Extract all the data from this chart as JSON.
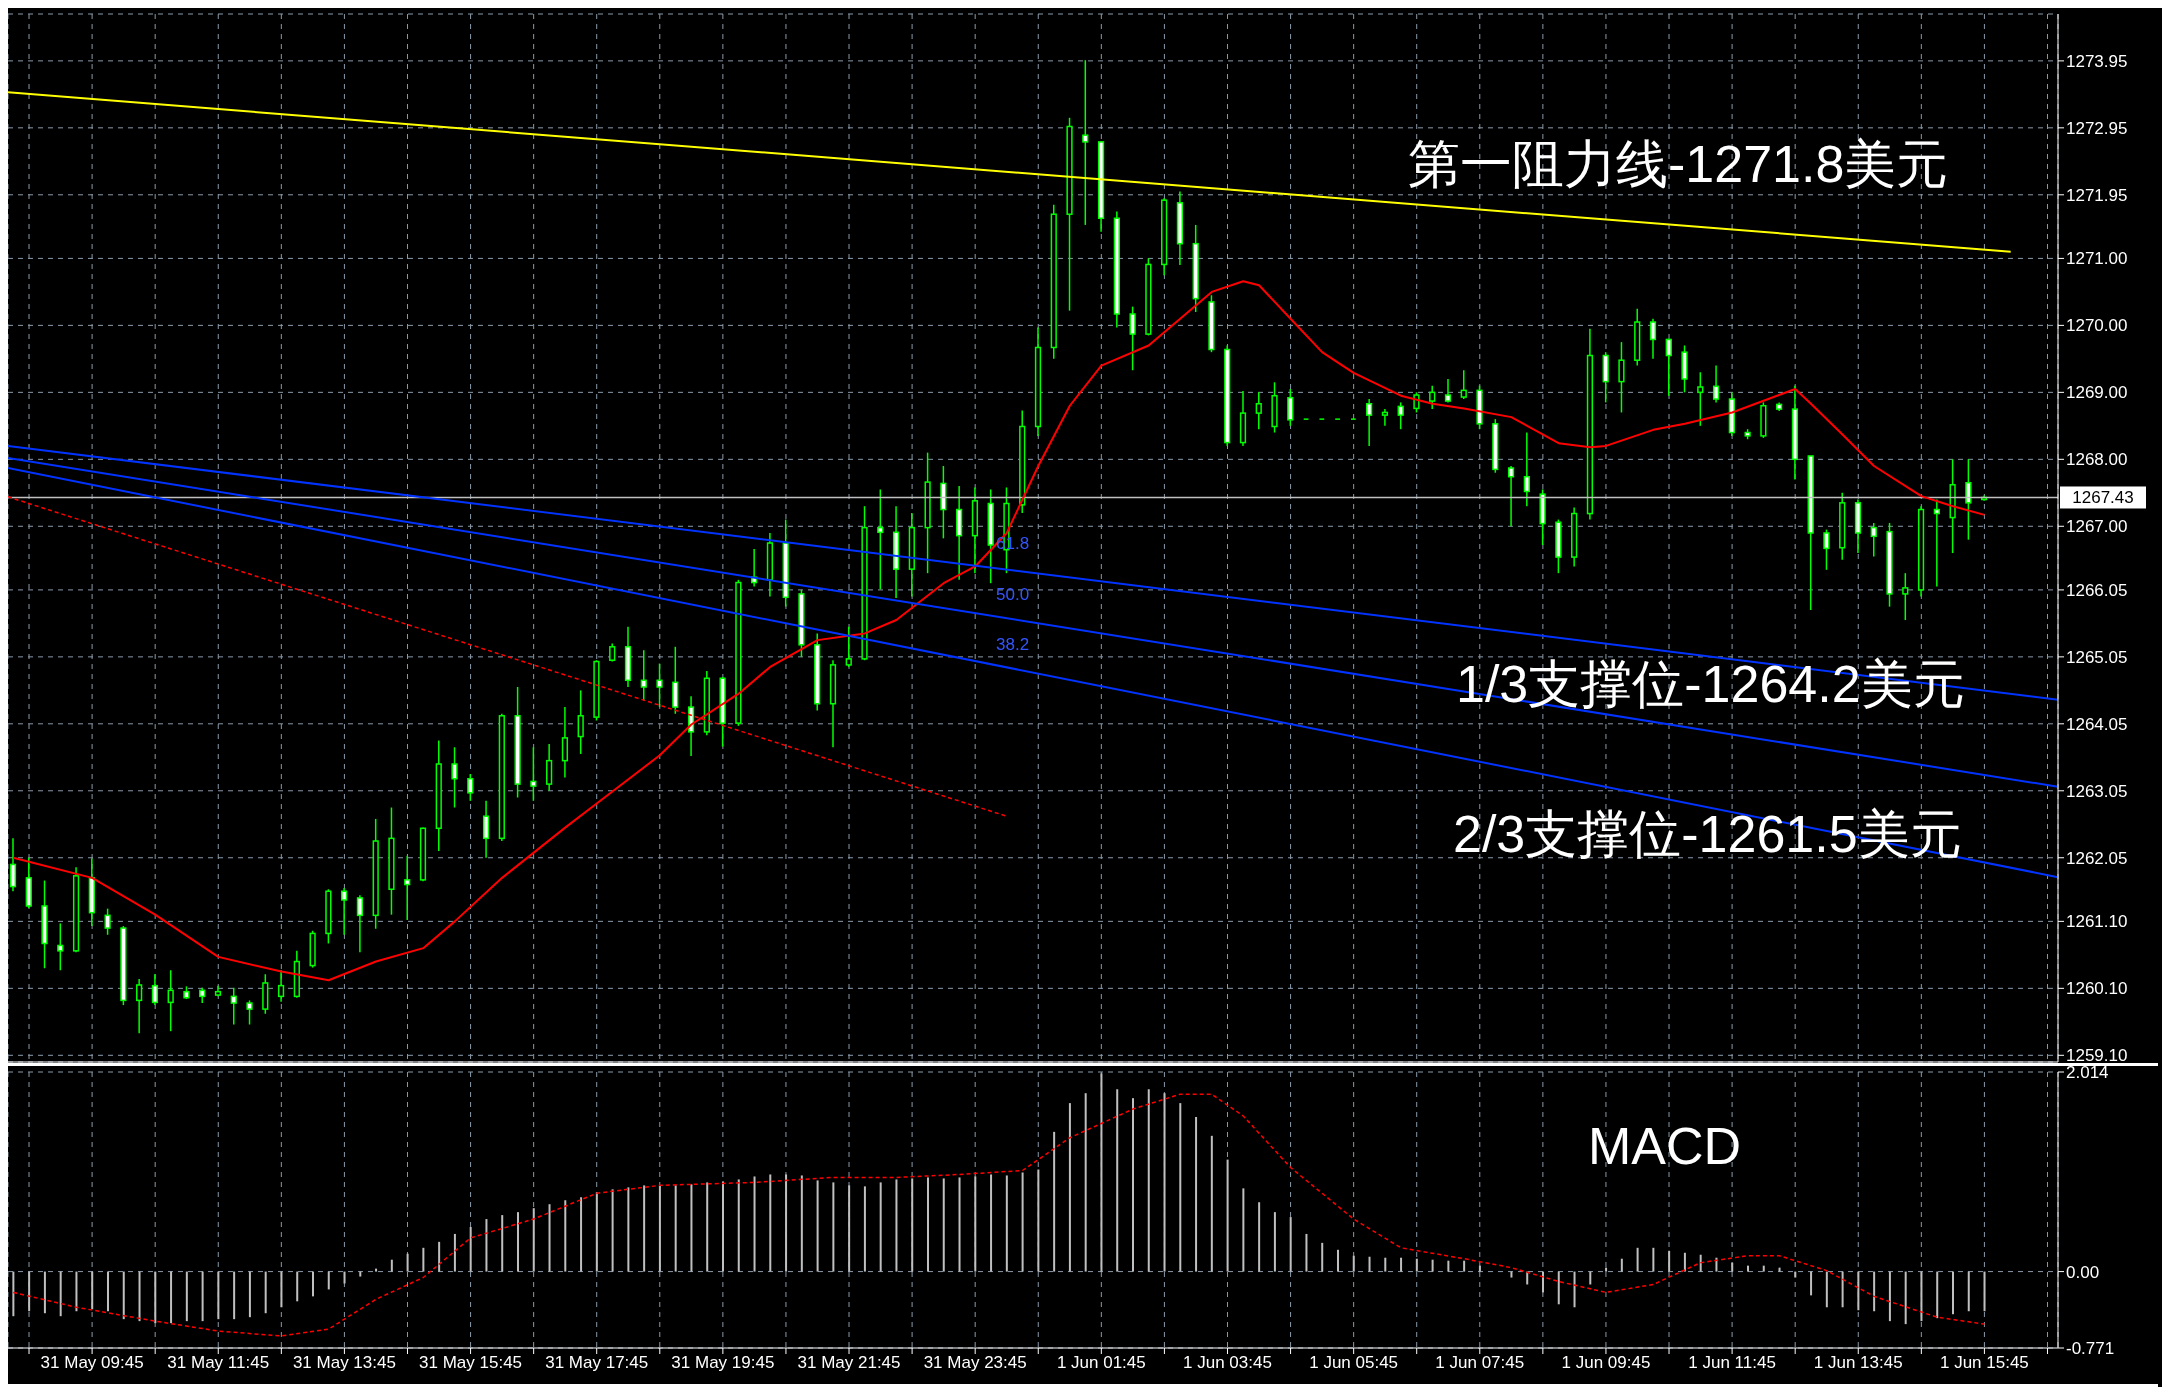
{
  "chart_data": [
    {
      "type": "candlestick",
      "tick_labels": "y",
      "grid": true,
      "marker": "none",
      "xlim": [
        "--05-31T08:25",
        "--06-01T16:55"
      ],
      "xticks": [
        {
          "value": "--05-31T08:45",
          "label": null
        },
        {
          "value": "--05-31T09:45",
          "label": null
        },
        {
          "value": "--05-31T10:45",
          "label": null
        },
        {
          "value": "--05-31T11:45",
          "label": null
        },
        {
          "value": "--05-31T12:45",
          "label": null
        },
        {
          "value": "--05-31T13:45",
          "label": null
        },
        {
          "value": "--05-31T14:45",
          "label": null
        },
        {
          "value": "--05-31T15:45",
          "label": null
        },
        {
          "value": "--05-31T16:45",
          "label": null
        },
        {
          "value": "--05-31T17:45",
          "label": null
        },
        {
          "value": "--05-31T18:45",
          "label": null
        },
        {
          "value": "--05-31T19:45",
          "label": null
        },
        {
          "value": "--05-31T20:45",
          "label": null
        },
        {
          "value": "--05-31T21:45",
          "label": null
        },
        {
          "value": "--05-31T22:45",
          "label": null
        },
        {
          "value": "--05-31T23:45",
          "label": null
        },
        {
          "value": "--06-01T00:45",
          "label": null
        },
        {
          "value": "--06-01T01:45",
          "label": null
        },
        {
          "value": "--06-01T02:45",
          "label": null
        },
        {
          "value": "--06-01T03:45",
          "label": null
        },
        {
          "value": "--06-01T04:45",
          "label": null
        },
        {
          "value": "--06-01T05:45",
          "label": null
        },
        {
          "value": "--06-01T06:45",
          "label": null
        },
        {
          "value": "--06-01T07:45",
          "label": null
        },
        {
          "value": "--06-01T08:45",
          "label": null
        },
        {
          "value": "--06-01T09:45",
          "label": null
        },
        {
          "value": "--06-01T10:45",
          "label": null
        },
        {
          "value": "--06-01T11:45",
          "label": null
        },
        {
          "value": "--06-01T12:45",
          "label": null
        },
        {
          "value": "--06-01T13:45",
          "label": null
        },
        {
          "value": "--06-01T14:45",
          "label": null
        },
        {
          "value": "--06-01T15:45",
          "label": null
        },
        {
          "value": "--06-01T16:45",
          "label": null
        }
      ],
      "ylim": [
        1259.0,
        1274.65
      ],
      "yticks": [
        {
          "value": 1259.1,
          "label": "1259.10"
        },
        {
          "value": 1260.1,
          "label": "1260.10"
        },
        {
          "value": 1261.1,
          "label": "1261.10"
        },
        1262.05,
        1263.05,
        1264.05,
        1265.05,
        1266.05,
        {
          "value": 1267,
          "label": "1267.00"
        },
        {
          "value": 1268,
          "label": "1268.00"
        },
        {
          "value": 1269,
          "label": "1269.00"
        },
        {
          "value": 1270,
          "label": "1270.00"
        },
        {
          "value": 1271,
          "label": "1271.00"
        },
        1271.95,
        1272.95,
        1273.95
      ],
      "ref_lines": [
        {
          "axis": "y",
          "value": 1267.43,
          "label": "1267.43",
          "color": "#c0c0c0"
        }
      ],
      "annotations": [
        "第一阻力线-1271.8美元",
        "1/3支撑位-1264.2美元",
        "2/3支撑位-1261.5美元",
        "61.8",
        "50.0",
        "38.2"
      ],
      "series": [
        {
          "color": "#00ff00",
          "x": [
            "--05-31T08:30",
            "--05-31T08:45",
            "--05-31T09:00",
            "--05-31T09:15",
            "--05-31T09:30",
            "--05-31T09:45",
            "--05-31T10:00",
            "--05-31T10:15",
            "--05-31T10:30",
            "--05-31T10:45",
            "--05-31T11:00",
            "--05-31T11:15",
            "--05-31T11:30",
            "--05-31T11:45",
            "--05-31T12:00",
            "--05-31T12:15",
            "--05-31T12:30",
            "--05-31T12:45",
            "--05-31T13:00",
            "--05-31T13:15",
            "--05-31T13:30",
            "--05-31T13:45",
            "--05-31T14:00",
            "--05-31T14:15",
            "--05-31T14:30",
            "--05-31T14:45",
            "--05-31T15:00",
            "--05-31T15:15",
            "--05-31T15:30",
            "--05-31T15:45",
            "--05-31T16:00",
            "--05-31T16:15",
            "--05-31T16:30",
            "--05-31T16:45",
            "--05-31T17:00",
            "--05-31T17:15",
            "--05-31T17:30",
            "--05-31T17:45",
            "--05-31T18:00",
            "--05-31T18:15",
            "--05-31T18:30",
            "--05-31T18:45",
            "--05-31T19:00",
            "--05-31T19:15",
            "--05-31T19:30",
            "--05-31T19:45",
            "--05-31T20:00",
            "--05-31T20:15",
            "--05-31T20:30",
            "--05-31T20:45",
            "--05-31T21:00",
            "--05-31T21:15",
            "--05-31T21:30",
            "--05-31T21:45",
            "--05-31T22:00",
            "--05-31T22:15",
            "--05-31T22:30",
            "--05-31T22:45",
            "--05-31T23:00",
            "--05-31T23:15",
            "--05-31T23:30",
            "--05-31T23:45",
            "--06-01T00:00",
            "--06-01T00:15",
            "--06-01T00:30",
            "--06-01T00:45",
            "--06-01T01:00",
            "--06-01T01:15",
            "--06-01T01:30",
            "--06-01T01:45",
            "--06-01T02:00",
            "--06-01T02:15",
            "--06-01T02:30",
            "--06-01T02:45",
            "--06-01T03:00",
            "--06-01T03:15",
            "--06-01T03:30",
            "--06-01T03:45",
            "--06-01T04:00",
            "--06-01T04:15",
            "--06-01T04:30",
            "--06-01T04:45",
            "--06-01T05:00",
            "--06-01T05:15",
            "--06-01T05:30",
            "--06-01T05:45",
            "--06-01T06:00",
            "--06-01T06:15",
            "--06-01T06:30",
            "--06-01T06:45",
            "--06-01T07:00",
            "--06-01T07:15",
            "--06-01T07:30",
            "--06-01T07:45",
            "--06-01T08:00",
            "--06-01T08:15",
            "--06-01T08:30",
            "--06-01T08:45",
            "--06-01T09:00",
            "--06-01T09:15",
            "--06-01T09:30",
            "--06-01T09:45",
            "--06-01T10:00",
            "--06-01T10:15",
            "--06-01T10:30",
            "--06-01T10:45",
            "--06-01T11:00",
            "--06-01T11:15",
            "--06-01T11:30",
            "--06-01T11:45",
            "--06-01T12:00",
            "--06-01T12:15",
            "--06-01T12:30",
            "--06-01T12:45",
            "--06-01T13:00",
            "--06-01T13:15",
            "--06-01T13:30",
            "--06-01T13:45",
            "--06-01T14:00",
            "--06-01T14:15",
            "--06-01T14:30",
            "--06-01T14:45",
            "--06-01T15:00",
            "--06-01T15:15",
            "--06-01T15:30",
            "--06-01T15:45"
          ],
          "ohlc": [
            [
              1261.95,
              1262.34,
              1261.55,
              1261.62
            ],
            [
              1261.75,
              1262.05,
              1261.3,
              1261.33
            ],
            [
              1261.33,
              1261.71,
              1260.4,
              1260.77
            ],
            [
              1260.74,
              1261.07,
              1260.37,
              1260.66
            ],
            [
              1260.66,
              1261.91,
              1260.64,
              1261.78
            ],
            [
              1261.75,
              1262.04,
              1261.03,
              1261.23
            ],
            [
              1261.19,
              1261.29,
              1260.9,
              1261.0
            ],
            [
              1261.0,
              1261.03,
              1259.85,
              1259.92
            ],
            [
              1259.92,
              1260.24,
              1259.43,
              1260.15
            ],
            [
              1260.14,
              1260.31,
              1259.85,
              1259.89
            ],
            [
              1259.89,
              1260.37,
              1259.46,
              1260.07
            ],
            [
              1260.05,
              1260.13,
              1259.94,
              1259.96
            ],
            [
              1260.07,
              1260.11,
              1259.88,
              1259.98
            ],
            [
              1260.0,
              1260.14,
              1259.98,
              1260.05
            ],
            [
              1259.98,
              1260.11,
              1259.56,
              1259.88
            ],
            [
              1259.88,
              1259.92,
              1259.56,
              1259.79
            ],
            [
              1259.79,
              1260.31,
              1259.72,
              1260.18
            ],
            [
              1259.98,
              1260.37,
              1259.9,
              1260.14
            ],
            [
              1259.98,
              1260.66,
              1259.96,
              1260.5
            ],
            [
              1260.44,
              1260.96,
              1260.41,
              1260.92
            ],
            [
              1260.92,
              1261.58,
              1260.77,
              1261.55
            ],
            [
              1261.55,
              1261.6,
              1260.9,
              1261.42
            ],
            [
              1261.45,
              1261.49,
              1260.64,
              1261.19
            ],
            [
              1261.19,
              1262.63,
              1260.99,
              1262.3
            ],
            [
              1261.58,
              1262.8,
              1261.2,
              1262.34
            ],
            [
              1261.72,
              1262.08,
              1261.12,
              1261.65
            ],
            [
              1261.72,
              1262.5,
              1261.7,
              1262.49
            ],
            [
              1262.49,
              1263.8,
              1262.15,
              1263.45
            ],
            [
              1263.45,
              1263.7,
              1262.8,
              1263.23
            ],
            [
              1263.23,
              1263.3,
              1262.9,
              1263.02
            ],
            [
              1262.67,
              1262.9,
              1262.05,
              1262.34
            ],
            [
              1262.34,
              1264.2,
              1262.3,
              1264.17
            ],
            [
              1264.17,
              1264.6,
              1262.95,
              1263.15
            ],
            [
              1263.19,
              1263.7,
              1262.9,
              1263.12
            ],
            [
              1263.15,
              1263.75,
              1263.05,
              1263.5
            ],
            [
              1263.5,
              1264.3,
              1263.25,
              1263.84
            ],
            [
              1263.86,
              1264.55,
              1263.6,
              1264.17
            ],
            [
              1264.15,
              1265.0,
              1264.1,
              1264.98
            ],
            [
              1265.0,
              1265.25,
              1264.98,
              1265.2
            ],
            [
              1265.2,
              1265.5,
              1264.6,
              1264.7
            ],
            [
              1264.7,
              1265.15,
              1264.4,
              1264.6
            ],
            [
              1264.7,
              1264.95,
              1264.3,
              1264.6
            ],
            [
              1264.67,
              1265.2,
              1264.2,
              1264.3
            ],
            [
              1264.3,
              1264.46,
              1263.57,
              1263.93
            ],
            [
              1263.93,
              1264.84,
              1263.88,
              1264.73
            ],
            [
              1264.73,
              1264.75,
              1263.71,
              1264.06
            ],
            [
              1264.06,
              1266.2,
              1264.02,
              1266.16
            ],
            [
              1266.24,
              1266.66,
              1266.1,
              1266.16
            ],
            [
              1266.2,
              1266.9,
              1265.95,
              1266.75
            ],
            [
              1266.75,
              1267.1,
              1265.8,
              1265.94
            ],
            [
              1265.99,
              1266.05,
              1265.05,
              1265.23
            ],
            [
              1265.23,
              1265.4,
              1264.25,
              1264.35
            ],
            [
              1264.35,
              1265.0,
              1263.7,
              1264.93
            ],
            [
              1264.93,
              1265.5,
              1264.9,
              1265.02
            ],
            [
              1265.02,
              1267.3,
              1265.0,
              1266.98
            ],
            [
              1266.98,
              1267.55,
              1266.06,
              1266.91
            ],
            [
              1266.91,
              1267.3,
              1265.93,
              1266.36
            ],
            [
              1266.36,
              1267.2,
              1265.95,
              1266.98
            ],
            [
              1266.98,
              1268.1,
              1266.3,
              1267.66
            ],
            [
              1267.64,
              1267.9,
              1266.82,
              1267.25
            ],
            [
              1267.25,
              1267.6,
              1266.2,
              1266.86
            ],
            [
              1266.86,
              1267.58,
              1266.3,
              1267.38
            ],
            [
              1267.34,
              1267.55,
              1266.15,
              1266.72
            ],
            [
              1266.65,
              1267.58,
              1266.3,
              1267.34
            ],
            [
              1267.32,
              1268.73,
              1267.2,
              1268.49
            ],
            [
              1268.49,
              1269.97,
              1268.35,
              1269.67
            ],
            [
              1269.67,
              1271.8,
              1269.5,
              1271.66
            ],
            [
              1271.66,
              1273.1,
              1270.22,
              1272.97
            ],
            [
              1272.84,
              1273.96,
              1271.5,
              1272.74
            ],
            [
              1272.74,
              1272.75,
              1271.4,
              1271.6
            ],
            [
              1271.6,
              1271.7,
              1269.97,
              1270.17
            ],
            [
              1270.17,
              1270.28,
              1269.33,
              1269.87
            ],
            [
              1269.87,
              1271.0,
              1269.85,
              1270.91
            ],
            [
              1270.91,
              1271.9,
              1270.75,
              1271.87
            ],
            [
              1271.83,
              1272.0,
              1270.9,
              1271.22
            ],
            [
              1271.22,
              1271.5,
              1270.2,
              1270.4
            ],
            [
              1270.35,
              1270.45,
              1269.6,
              1269.64
            ],
            [
              1269.64,
              1269.7,
              1268.2,
              1268.25
            ],
            [
              1268.25,
              1269.02,
              1268.2,
              1268.69
            ],
            [
              1268.69,
              1269.0,
              1268.45,
              1268.83
            ],
            [
              1268.49,
              1269.15,
              1268.4,
              1268.95
            ],
            [
              1268.92,
              1269.05,
              1268.5,
              1268.59
            ],
            [
              1268.6,
              1268.6,
              1268.6,
              1268.6
            ],
            [
              1268.6,
              1268.6,
              1268.6,
              1268.6
            ],
            [
              1268.6,
              1268.6,
              1268.6,
              1268.6
            ],
            [
              1268.6,
              1268.6,
              1268.6,
              1268.6
            ],
            [
              1268.83,
              1268.9,
              1268.2,
              1268.66
            ],
            [
              1268.66,
              1268.75,
              1268.5,
              1268.7
            ],
            [
              1268.79,
              1268.85,
              1268.45,
              1268.66
            ],
            [
              1268.76,
              1269.0,
              1268.7,
              1268.96
            ],
            [
              1268.87,
              1269.1,
              1268.75,
              1269.0
            ],
            [
              1268.96,
              1269.2,
              1268.85,
              1268.87
            ],
            [
              1268.93,
              1269.33,
              1268.9,
              1269.03
            ],
            [
              1269.03,
              1269.1,
              1268.45,
              1268.53
            ],
            [
              1268.53,
              1268.6,
              1267.8,
              1267.85
            ],
            [
              1267.87,
              1267.9,
              1267.0,
              1267.74
            ],
            [
              1267.74,
              1268.4,
              1267.3,
              1267.52
            ],
            [
              1267.48,
              1267.55,
              1266.72,
              1267.04
            ],
            [
              1267.06,
              1267.1,
              1266.3,
              1266.54
            ],
            [
              1266.54,
              1267.28,
              1266.4,
              1267.19
            ],
            [
              1267.19,
              1269.95,
              1267.1,
              1269.55
            ],
            [
              1269.55,
              1269.6,
              1268.85,
              1269.16
            ],
            [
              1269.16,
              1269.75,
              1268.7,
              1269.48
            ],
            [
              1269.48,
              1270.25,
              1269.4,
              1270.05
            ],
            [
              1270.05,
              1270.1,
              1269.5,
              1269.79
            ],
            [
              1269.79,
              1269.8,
              1268.95,
              1269.55
            ],
            [
              1269.6,
              1269.7,
              1269.0,
              1269.2
            ],
            [
              1269.0,
              1269.3,
              1268.5,
              1269.08
            ],
            [
              1269.09,
              1269.4,
              1268.85,
              1268.9
            ],
            [
              1268.9,
              1269.0,
              1268.35,
              1268.4
            ],
            [
              1268.4,
              1268.45,
              1268.3,
              1268.35
            ],
            [
              1268.35,
              1268.85,
              1268.32,
              1268.8
            ],
            [
              1268.82,
              1268.85,
              1268.72,
              1268.75
            ],
            [
              1268.75,
              1269.1,
              1267.7,
              1268.0
            ],
            [
              1268.05,
              1268.05,
              1265.75,
              1266.9
            ],
            [
              1266.9,
              1266.95,
              1266.35,
              1266.67
            ],
            [
              1266.68,
              1267.5,
              1266.5,
              1267.35
            ],
            [
              1267.35,
              1267.4,
              1266.6,
              1266.9
            ],
            [
              1266.98,
              1267.05,
              1266.55,
              1266.85
            ],
            [
              1266.92,
              1267.05,
              1265.8,
              1265.99
            ],
            [
              1265.99,
              1266.3,
              1265.6,
              1266.08
            ],
            [
              1266.05,
              1267.3,
              1265.95,
              1267.25
            ],
            [
              1267.25,
              1267.4,
              1266.1,
              1267.19
            ],
            [
              1267.13,
              1268.0,
              1266.6,
              1267.62
            ],
            [
              1267.65,
              1268.0,
              1266.8,
              1267.35
            ],
            [
              1267.4,
              1267.46,
              1267.38,
              1267.43
            ]
          ]
        },
        {
          "type": "line",
          "color": "#ff0000",
          "x": [
            "--05-31T08:30",
            "--05-31T09:45",
            "--05-31T10:45",
            "--05-31T11:45",
            "--05-31T12:45",
            "--05-31T13:30",
            "--05-31T14:15",
            "--05-31T15:00",
            "--05-31T15:30",
            "--05-31T16:15",
            "--05-31T17:15",
            "--05-31T17:45",
            "--05-31T18:45",
            "--05-31T19:15",
            "--05-31T20:00",
            "--05-31T20:30",
            "--05-31T21:15",
            "--05-31T22:00",
            "--05-31T22:30",
            "--05-31T23:15",
            "--05-31T23:45",
            "--06-01T00:15",
            "--06-01T00:45",
            "--06-01T01:15",
            "--06-01T01:45",
            "--06-01T02:30",
            "--06-01T03:00",
            "--06-01T03:30",
            "--06-01T04:00",
            "--06-01T04:15",
            "--06-01T04:45",
            "--06-01T05:15",
            "--06-01T05:45",
            "--06-01T06:30",
            "--06-01T07:00",
            "--06-01T07:30",
            "--06-01T08:15",
            "--06-01T09:00",
            "--06-01T09:30",
            "--06-01T09:45",
            "--06-01T10:30",
            "--06-01T11:00",
            "--06-01T11:45",
            "--06-01T12:45",
            "--06-01T13:00",
            "--06-01T13:30",
            "--06-01T14:00",
            "--06-01T14:45",
            "--06-01T15:15",
            "--06-01T15:45"
          ],
          "values": [
            1262.05,
            1261.75,
            1261.2,
            1260.57,
            1260.35,
            1260.22,
            1260.5,
            1260.7,
            1261.1,
            1261.75,
            1262.5,
            1262.86,
            1263.58,
            1264.04,
            1264.5,
            1264.9,
            1265.3,
            1265.4,
            1265.6,
            1266.15,
            1266.4,
            1266.9,
            1267.9,
            1268.8,
            1269.4,
            1269.7,
            1270.1,
            1270.5,
            1270.66,
            1270.6,
            1270.1,
            1269.6,
            1269.29,
            1268.95,
            1268.83,
            1268.76,
            1268.63,
            1268.24,
            1268.18,
            1268.2,
            1268.44,
            1268.53,
            1268.7,
            1269.05,
            1268.83,
            1268.37,
            1267.9,
            1267.45,
            1267.3,
            1267.17
          ]
        },
        {
          "type": "line",
          "color": "#ffff00",
          "x": [
            "--05-31T08:25",
            "--06-01T16:10"
          ],
          "values": [
            1273.48,
            1271.1
          ]
        },
        {
          "type": "line",
          "color": "#0033ff",
          "x": [
            "--05-31T08:25",
            "--06-01T16:55"
          ],
          "values": [
            1268.2,
            1264.41
          ]
        },
        {
          "type": "line",
          "color": "#0033ff",
          "x": [
            "--05-31T08:25",
            "--06-01T16:55"
          ],
          "values": [
            1268.02,
            1263.11
          ]
        },
        {
          "type": "line",
          "color": "#0033ff",
          "x": [
            "--05-31T08:25",
            "--06-01T16:55"
          ],
          "values": [
            1267.87,
            1261.76
          ]
        },
        {
          "type": "line",
          "color": "#ff0000",
          "line_style": "dashed",
          "x": [
            "--05-31T08:25",
            "--06-01T00:15"
          ],
          "values": [
            1267.44,
            1262.67
          ]
        }
      ]
    },
    {
      "type": "bar",
      "title": "MACD",
      "grid": true,
      "marker": "none",
      "xlim": [
        "--05-31T08:25",
        "--06-01T16:55"
      ],
      "xticks": [
        {
          "value": "--05-31T08:45",
          "label": null
        },
        {
          "value": "--05-31T09:45",
          "label": "31 May 09:45"
        },
        {
          "value": "--05-31T10:45",
          "label": null
        },
        {
          "value": "--05-31T11:45",
          "label": "31 May 11:45"
        },
        {
          "value": "--05-31T12:45",
          "label": null
        },
        {
          "value": "--05-31T13:45",
          "label": "31 May 13:45"
        },
        {
          "value": "--05-31T14:45",
          "label": null
        },
        {
          "value": "--05-31T15:45",
          "label": "31 May 15:45"
        },
        {
          "value": "--05-31T16:45",
          "label": null
        },
        {
          "value": "--05-31T17:45",
          "label": "31 May 17:45"
        },
        {
          "value": "--05-31T18:45",
          "label": null
        },
        {
          "value": "--05-31T19:45",
          "label": "31 May 19:45"
        },
        {
          "value": "--05-31T20:45",
          "label": null
        },
        {
          "value": "--05-31T21:45",
          "label": "31 May 21:45"
        },
        {
          "value": "--05-31T22:45",
          "label": null
        },
        {
          "value": "--05-31T23:45",
          "label": "31 May 23:45"
        },
        {
          "value": "--06-01T00:45",
          "label": null
        },
        {
          "value": "--06-01T01:45",
          "label": "1 Jun 01:45"
        },
        {
          "value": "--06-01T02:45",
          "label": null
        },
        {
          "value": "--06-01T03:45",
          "label": "1 Jun 03:45"
        },
        {
          "value": "--06-01T04:45",
          "label": null
        },
        {
          "value": "--06-01T05:45",
          "label": "1 Jun 05:45"
        },
        {
          "value": "--06-01T06:45",
          "label": null
        },
        {
          "value": "--06-01T07:45",
          "label": "1 Jun 07:45"
        },
        {
          "value": "--06-01T08:45",
          "label": null
        },
        {
          "value": "--06-01T09:45",
          "label": "1 Jun 09:45"
        },
        {
          "value": "--06-01T10:45",
          "label": null
        },
        {
          "value": "--06-01T11:45",
          "label": "1 Jun 11:45"
        },
        {
          "value": "--06-01T12:45",
          "label": null
        },
        {
          "value": "--06-01T13:45",
          "label": "1 Jun 13:45"
        },
        {
          "value": "--06-01T14:45",
          "label": null
        },
        {
          "value": "--06-01T15:45",
          "label": "1 Jun 15:45"
        },
        {
          "value": "--06-01T16:45",
          "label": null
        }
      ],
      "ylim": [
        -0.771,
        2.014
      ],
      "yticks": [
        -0.771,
        {
          "value": 0,
          "label": "0.00"
        },
        2.014
      ],
      "series": [
        {
          "color": "#c0c0c0",
          "x": [
            "--05-31T08:30",
            "--05-31T08:45",
            "--05-31T09:00",
            "--05-31T09:15",
            "--05-31T09:30",
            "--05-31T09:45",
            "--05-31T10:00",
            "--05-31T10:15",
            "--05-31T10:30",
            "--05-31T10:45",
            "--05-31T11:00",
            "--05-31T11:15",
            "--05-31T11:30",
            "--05-31T11:45",
            "--05-31T12:00",
            "--05-31T12:15",
            "--05-31T12:30",
            "--05-31T12:45",
            "--05-31T13:00",
            "--05-31T13:15",
            "--05-31T13:30",
            "--05-31T13:45",
            "--05-31T14:00",
            "--05-31T14:15",
            "--05-31T14:30",
            "--05-31T14:45",
            "--05-31T15:00",
            "--05-31T15:15",
            "--05-31T15:30",
            "--05-31T15:45",
            "--05-31T16:00",
            "--05-31T16:15",
            "--05-31T16:30",
            "--05-31T16:45",
            "--05-31T17:00",
            "--05-31T17:15",
            "--05-31T17:30",
            "--05-31T17:45",
            "--05-31T18:00",
            "--05-31T18:15",
            "--05-31T18:30",
            "--05-31T18:45",
            "--05-31T19:00",
            "--05-31T19:15",
            "--05-31T19:30",
            "--05-31T19:45",
            "--05-31T20:00",
            "--05-31T20:15",
            "--05-31T20:30",
            "--05-31T20:45",
            "--05-31T21:00",
            "--05-31T21:15",
            "--05-31T21:30",
            "--05-31T21:45",
            "--05-31T22:00",
            "--05-31T22:15",
            "--05-31T22:30",
            "--05-31T22:45",
            "--05-31T23:00",
            "--05-31T23:15",
            "--05-31T23:30",
            "--05-31T23:45",
            "--06-01T00:00",
            "--06-01T00:15",
            "--06-01T00:30",
            "--06-01T00:45",
            "--06-01T01:00",
            "--06-01T01:15",
            "--06-01T01:30",
            "--06-01T01:45",
            "--06-01T02:00",
            "--06-01T02:15",
            "--06-01T02:30",
            "--06-01T02:45",
            "--06-01T03:00",
            "--06-01T03:15",
            "--06-01T03:30",
            "--06-01T03:45",
            "--06-01T04:00",
            "--06-01T04:15",
            "--06-01T04:30",
            "--06-01T04:45",
            "--06-01T05:00",
            "--06-01T05:15",
            "--06-01T05:30",
            "--06-01T05:45",
            "--06-01T06:00",
            "--06-01T06:15",
            "--06-01T06:30",
            "--06-01T06:45",
            "--06-01T07:00",
            "--06-01T07:15",
            "--06-01T07:30",
            "--06-01T07:45",
            "--06-01T08:00",
            "--06-01T08:15",
            "--06-01T08:30",
            "--06-01T08:45",
            "--06-01T09:00",
            "--06-01T09:15",
            "--06-01T09:30",
            "--06-01T09:45",
            "--06-01T10:00",
            "--06-01T10:15",
            "--06-01T10:30",
            "--06-01T10:45",
            "--06-01T11:00",
            "--06-01T11:15",
            "--06-01T11:30",
            "--06-01T11:45",
            "--06-01T12:00",
            "--06-01T12:15",
            "--06-01T12:30",
            "--06-01T12:45",
            "--06-01T13:00",
            "--06-01T13:15",
            "--06-01T13:30",
            "--06-01T13:45",
            "--06-01T14:00",
            "--06-01T14:15",
            "--06-01T14:30",
            "--06-01T14:45",
            "--06-01T15:00",
            "--06-01T15:15",
            "--06-01T15:30",
            "--06-01T15:45"
          ],
          "values": [
            -0.45,
            -0.4,
            -0.42,
            -0.45,
            -0.4,
            -0.38,
            -0.4,
            -0.48,
            -0.5,
            -0.52,
            -0.52,
            -0.5,
            -0.5,
            -0.48,
            -0.48,
            -0.46,
            -0.42,
            -0.36,
            -0.3,
            -0.25,
            -0.18,
            -0.12,
            -0.05,
            0.03,
            0.12,
            0.18,
            0.24,
            0.3,
            0.38,
            0.45,
            0.53,
            0.57,
            0.6,
            0.64,
            0.68,
            0.72,
            0.75,
            0.8,
            0.83,
            0.85,
            0.87,
            0.87,
            0.87,
            0.88,
            0.9,
            0.91,
            0.93,
            0.96,
            0.98,
            0.98,
            0.97,
            0.92,
            0.9,
            0.87,
            0.86,
            0.9,
            0.93,
            0.94,
            0.95,
            0.94,
            0.95,
            0.96,
            0.98,
            0.97,
            1.0,
            1.03,
            1.41,
            1.7,
            1.8,
            2.0,
            1.84,
            1.75,
            1.84,
            1.8,
            1.7,
            1.56,
            1.37,
            1.13,
            0.84,
            0.7,
            0.6,
            0.55,
            0.38,
            0.29,
            0.22,
            0.16,
            0.15,
            0.14,
            0.14,
            0.13,
            0.12,
            0.11,
            0.11,
            0.06,
            0.0,
            -0.06,
            -0.13,
            -0.21,
            -0.33,
            -0.36,
            -0.13,
            0.04,
            0.13,
            0.24,
            0.24,
            0.21,
            0.19,
            0.17,
            0.14,
            0.09,
            0.06,
            0.06,
            0.04,
            -0.06,
            -0.24,
            -0.36,
            -0.36,
            -0.39,
            -0.4,
            -0.5,
            -0.53,
            -0.5,
            -0.47,
            -0.43,
            -0.4,
            -0.4
          ]
        },
        {
          "type": "line",
          "color": "#ff0000",
          "line_style": "dashed",
          "x": [
            "--05-31T08:30",
            "--05-31T09:30",
            "--05-31T10:45",
            "--05-31T11:45",
            "--05-31T12:45",
            "--05-31T13:30",
            "--05-31T14:15",
            "--05-31T15:00",
            "--05-31T15:45",
            "--05-31T16:45",
            "--05-31T17:45",
            "--05-31T18:45",
            "--05-31T20:15",
            "--05-31T21:30",
            "--05-31T22:30",
            "--05-31T23:30",
            "--06-01T00:30",
            "--06-01T01:15",
            "--06-01T02:15",
            "--06-01T03:00",
            "--06-01T03:30",
            "--06-01T04:00",
            "--06-01T04:45",
            "--06-01T05:45",
            "--06-01T06:30",
            "--06-01T07:30",
            "--06-01T08:15",
            "--06-01T09:00",
            "--06-01T09:45",
            "--06-01T10:30",
            "--06-01T11:15",
            "--06-01T12:00",
            "--06-01T12:30",
            "--06-01T13:15",
            "--06-01T14:00",
            "--06-01T15:00",
            "--06-01T15:45"
          ],
          "values": [
            -0.21,
            -0.36,
            -0.5,
            -0.6,
            -0.65,
            -0.58,
            -0.28,
            -0.06,
            0.34,
            0.53,
            0.79,
            0.87,
            0.9,
            0.95,
            0.95,
            0.98,
            1.02,
            1.35,
            1.64,
            1.79,
            1.79,
            1.57,
            1.05,
            0.53,
            0.24,
            0.13,
            0.04,
            -0.1,
            -0.21,
            -0.13,
            0.09,
            0.16,
            0.16,
            0.01,
            -0.25,
            -0.46,
            -0.53
          ]
        }
      ]
    }
  ]
}
